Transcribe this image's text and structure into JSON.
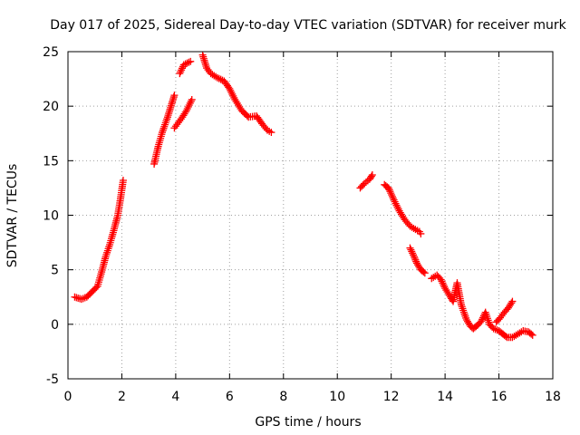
{
  "chart_data": {
    "type": "scatter",
    "title": "Day 017 of 2025, Sidereal Day-to-day VTEC variation (SDTVAR) for receiver murk",
    "xlabel": "GPS time / hours",
    "ylabel": "SDTVAR / TECUs",
    "xlim": [
      0,
      18
    ],
    "ylim": [
      -5,
      25
    ],
    "xticks": [
      0,
      2,
      4,
      6,
      8,
      10,
      12,
      14,
      16,
      18
    ],
    "yticks": [
      -5,
      0,
      5,
      10,
      15,
      20,
      25
    ],
    "xtick_labels": [
      "0",
      "2",
      "4",
      "6",
      "8",
      "10",
      "12",
      "14",
      "16",
      "18"
    ],
    "ytick_labels": [
      "-5",
      "0",
      "5",
      "10",
      "15",
      "20",
      "25"
    ],
    "grid": true,
    "marker": "plus",
    "series": [
      {
        "name": "SDTVAR",
        "color": "#ff0000",
        "segments": [
          [
            [
              0.25,
              2.5
            ],
            [
              0.5,
              2.3
            ],
            [
              0.7,
              2.5
            ],
            [
              0.9,
              3.0
            ],
            [
              1.1,
              3.5
            ],
            [
              1.25,
              4.8
            ],
            [
              1.4,
              6.2
            ],
            [
              1.55,
              7.3
            ],
            [
              1.7,
              8.6
            ],
            [
              1.85,
              10.0
            ],
            [
              1.95,
              11.5
            ],
            [
              2.05,
              13.2
            ]
          ],
          [
            [
              3.2,
              14.7
            ],
            [
              3.35,
              16.3
            ],
            [
              3.5,
              17.6
            ],
            [
              3.7,
              19.0
            ],
            [
              3.85,
              20.2
            ],
            [
              3.95,
              21.0
            ]
          ],
          [
            [
              3.95,
              18.0
            ],
            [
              4.1,
              18.5
            ],
            [
              4.25,
              19.0
            ],
            [
              4.4,
              19.6
            ],
            [
              4.6,
              20.6
            ]
          ],
          [
            [
              4.15,
              23.0
            ],
            [
              4.3,
              23.8
            ],
            [
              4.55,
              24.1
            ]
          ],
          [
            [
              5.0,
              24.7
            ],
            [
              5.15,
              23.5
            ],
            [
              5.3,
              23.0
            ],
            [
              5.55,
              22.6
            ],
            [
              5.8,
              22.3
            ],
            [
              6.0,
              21.6
            ],
            [
              6.2,
              20.6
            ],
            [
              6.45,
              19.6
            ],
            [
              6.7,
              19.0
            ],
            [
              7.0,
              19.1
            ],
            [
              7.2,
              18.4
            ],
            [
              7.4,
              17.8
            ],
            [
              7.55,
              17.6
            ]
          ],
          [
            [
              10.85,
              12.5
            ],
            [
              11.0,
              12.9
            ],
            [
              11.2,
              13.3
            ],
            [
              11.3,
              13.7
            ]
          ],
          [
            [
              11.75,
              12.8
            ],
            [
              11.9,
              12.5
            ],
            [
              12.1,
              11.4
            ],
            [
              12.3,
              10.4
            ],
            [
              12.5,
              9.6
            ],
            [
              12.7,
              9.0
            ],
            [
              12.9,
              8.7
            ],
            [
              13.05,
              8.5
            ],
            [
              13.1,
              8.3
            ]
          ],
          [
            [
              12.7,
              7.0
            ],
            [
              12.85,
              6.2
            ],
            [
              12.95,
              5.6
            ],
            [
              13.1,
              5.0
            ],
            [
              13.25,
              4.7
            ]
          ],
          [
            [
              13.5,
              4.2
            ],
            [
              13.7,
              4.5
            ],
            [
              13.85,
              4.1
            ],
            [
              14.0,
              3.3
            ],
            [
              14.2,
              2.5
            ],
            [
              14.3,
              2.1
            ],
            [
              14.45,
              3.8
            ],
            [
              14.6,
              1.8
            ],
            [
              14.8,
              0.4
            ],
            [
              14.95,
              -0.2
            ],
            [
              15.05,
              -0.4
            ],
            [
              15.2,
              -0.1
            ],
            [
              15.35,
              0.3
            ],
            [
              15.5,
              1.1
            ],
            [
              15.65,
              0.0
            ],
            [
              15.8,
              -0.4
            ],
            [
              16.0,
              -0.6
            ],
            [
              16.15,
              -0.9
            ],
            [
              16.3,
              -1.2
            ],
            [
              16.5,
              -1.2
            ],
            [
              16.7,
              -0.9
            ],
            [
              16.9,
              -0.6
            ],
            [
              17.1,
              -0.7
            ],
            [
              17.25,
              -1.0
            ]
          ],
          [
            [
              15.9,
              0.2
            ],
            [
              16.05,
              0.6
            ],
            [
              16.2,
              1.1
            ],
            [
              16.35,
              1.5
            ],
            [
              16.5,
              2.1
            ]
          ]
        ]
      }
    ]
  }
}
